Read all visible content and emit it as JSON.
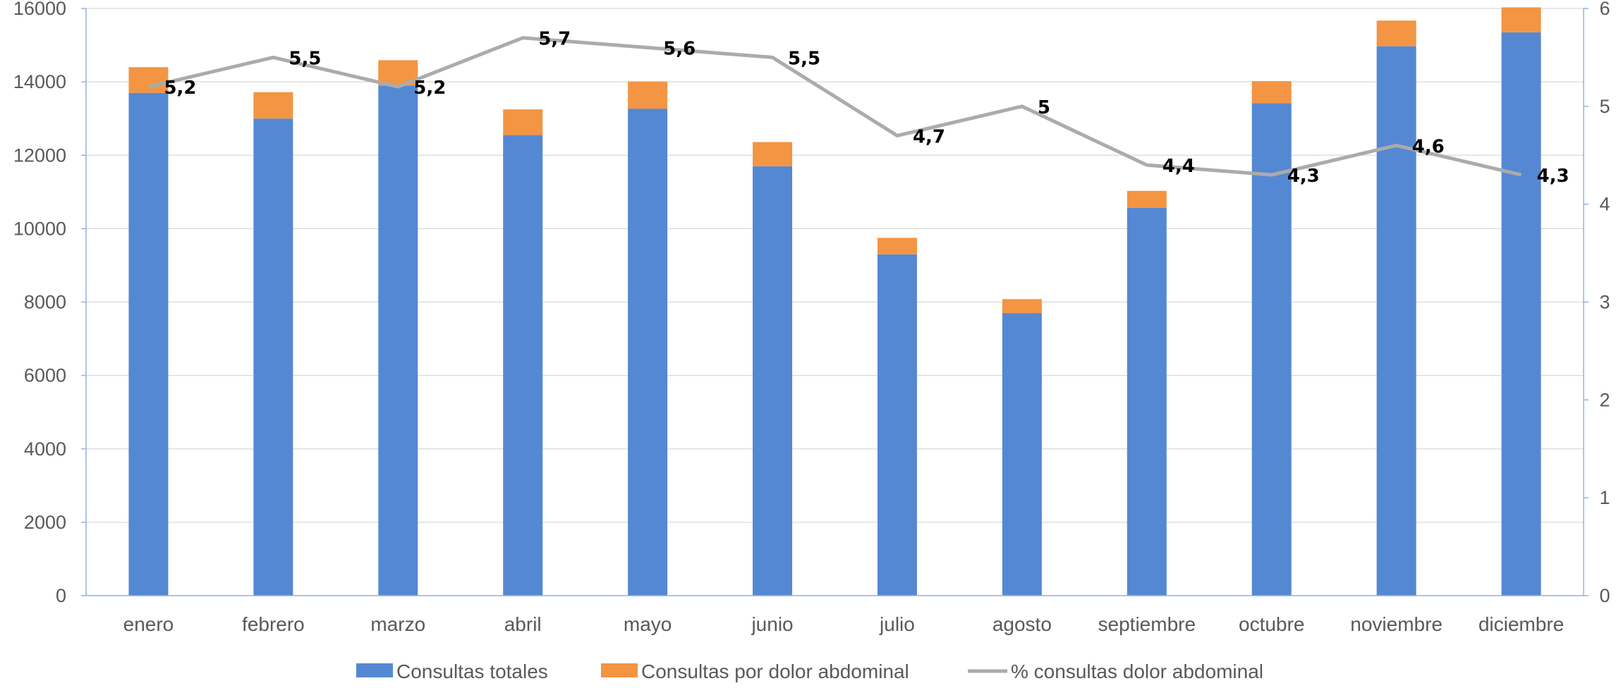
{
  "chart_data": {
    "type": "bar",
    "stacked": true,
    "categories": [
      "enero",
      "febrero",
      "marzo",
      "abril",
      "mayo",
      "junio",
      "julio",
      "agosto",
      "septiembre",
      "octubre",
      "noviembre",
      "diciembre"
    ],
    "series": [
      {
        "name": "Consultas totales",
        "type": "bar",
        "axis": "left",
        "color": "#5588d3",
        "values": [
          13700,
          13000,
          13900,
          12550,
          13270,
          11700,
          9300,
          7700,
          10570,
          13420,
          14970,
          15350
        ]
      },
      {
        "name": "Consultas por dolor abdominal",
        "type": "bar",
        "axis": "left",
        "color": "#f39542",
        "values": [
          700,
          720,
          690,
          700,
          740,
          660,
          450,
          380,
          460,
          600,
          700,
          680
        ]
      },
      {
        "name": "% consultas dolor abdominal",
        "type": "line",
        "axis": "right",
        "color": "#ababab",
        "values": [
          5.2,
          5.5,
          5.2,
          5.7,
          5.6,
          5.5,
          4.7,
          5,
          4.4,
          4.3,
          4.6,
          4.3
        ],
        "labels": [
          "5,2",
          "5,5",
          "5,2",
          "5,7",
          "5,6",
          "5,5",
          "4,7",
          "5",
          "4,4",
          "4,3",
          "4,6",
          "4,3"
        ]
      }
    ],
    "y_left": {
      "min": 0,
      "max": 16000,
      "ticks": [
        "0",
        "2000",
        "4000",
        "6000",
        "8000",
        "10000",
        "12000",
        "14000",
        "16000"
      ]
    },
    "y_right": {
      "min": 0,
      "max": 6,
      "ticks": [
        "0",
        "1",
        "2",
        "3",
        "4",
        "5",
        "6"
      ]
    },
    "grid": true,
    "legend_position": "bottom",
    "title": "",
    "xlabel": "",
    "ylabel": ""
  }
}
